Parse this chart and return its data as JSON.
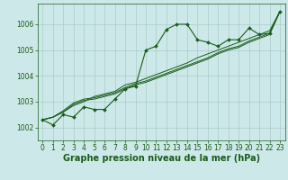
{
  "background_color": "#cce8e8",
  "plot_background": "#cce8e8",
  "grid_color": "#aacccc",
  "line_color": "#1a5c1a",
  "marker_color": "#1a5c1a",
  "xlabel": "Graphe pression niveau de la mer (hPa)",
  "ylim": [
    1001.5,
    1006.8
  ],
  "xlim": [
    -0.5,
    23.5
  ],
  "yticks": [
    1002,
    1003,
    1004,
    1005,
    1006
  ],
  "xticks": [
    0,
    1,
    2,
    3,
    4,
    5,
    6,
    7,
    8,
    9,
    10,
    11,
    12,
    13,
    14,
    15,
    16,
    17,
    18,
    19,
    20,
    21,
    22,
    23
  ],
  "series1": [
    1002.3,
    1002.1,
    1002.5,
    1002.4,
    1002.8,
    1002.7,
    1002.7,
    1003.1,
    1003.5,
    1003.6,
    1005.0,
    1005.15,
    1005.8,
    1006.0,
    1006.0,
    1005.4,
    1005.3,
    1005.15,
    1005.4,
    1005.4,
    1005.85,
    1005.6,
    1005.65,
    1006.5
  ],
  "series2": [
    1002.3,
    1002.4,
    1002.6,
    1002.85,
    1003.0,
    1003.2,
    1003.3,
    1003.4,
    1003.65,
    1003.75,
    1003.9,
    1004.05,
    1004.2,
    1004.35,
    1004.5,
    1004.7,
    1004.85,
    1005.0,
    1005.15,
    1005.3,
    1005.45,
    1005.6,
    1005.75,
    1006.5
  ],
  "series3": [
    1002.3,
    1002.4,
    1002.6,
    1002.9,
    1003.05,
    1003.1,
    1003.2,
    1003.3,
    1003.5,
    1003.65,
    1003.75,
    1003.9,
    1004.05,
    1004.2,
    1004.35,
    1004.5,
    1004.65,
    1004.85,
    1005.0,
    1005.1,
    1005.3,
    1005.45,
    1005.6,
    1006.5
  ],
  "series4": [
    1002.3,
    1002.4,
    1002.65,
    1002.95,
    1003.1,
    1003.15,
    1003.25,
    1003.35,
    1003.55,
    1003.7,
    1003.8,
    1003.95,
    1004.1,
    1004.25,
    1004.4,
    1004.55,
    1004.7,
    1004.9,
    1005.05,
    1005.15,
    1005.35,
    1005.5,
    1005.65,
    1006.5
  ],
  "title_fontsize": 7,
  "tick_fontsize": 5.5
}
